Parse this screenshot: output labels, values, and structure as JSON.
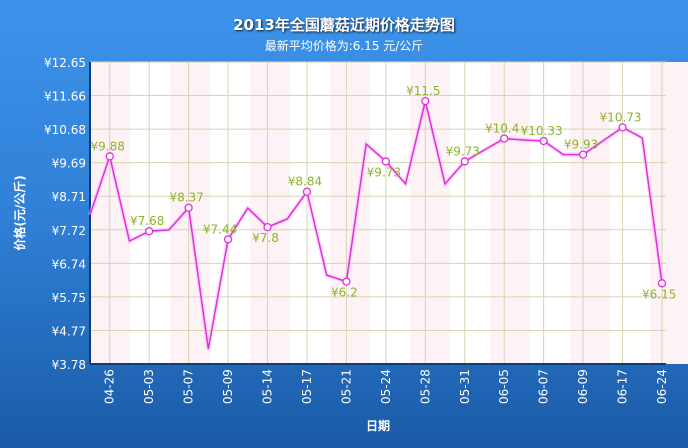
{
  "chart_data": {
    "type": "line",
    "title": "2013年全国蘑菇近期价格走势图",
    "subtitle": "最新平均价格为:6.15 元/公斤",
    "xlabel": "日期",
    "ylabel": "价格(元/公斤)",
    "yticks": [
      "¥12.65",
      "¥11.66",
      "¥10.68",
      "¥9.69",
      "¥8.71",
      "¥7.72",
      "¥6.74",
      "¥5.75",
      "¥4.77",
      "¥3.78"
    ],
    "ylim": [
      3.78,
      12.65
    ],
    "grid": true,
    "xtick_labels": [
      "04-26",
      "05-03",
      "05-07",
      "05-09",
      "05-14",
      "05-17",
      "05-21",
      "05-24",
      "05-28",
      "05-31",
      "06-05",
      "06-07",
      "06-09",
      "06-17",
      "06-24"
    ],
    "values": [
      8.16,
      9.88,
      7.39,
      7.68,
      7.72,
      8.37,
      4.22,
      7.44,
      8.36,
      7.8,
      8.04,
      8.84,
      6.39,
      6.2,
      10.24,
      9.73,
      9.07,
      11.5,
      9.07,
      9.73,
      10.07,
      10.4,
      10.36,
      10.33,
      9.93,
      9.93,
      10.33,
      10.73,
      10.42,
      6.15
    ],
    "labels": [
      "",
      "¥9.88",
      "",
      "¥7.68",
      "",
      "¥8.37",
      "",
      "¥7.44",
      "",
      "¥7.8",
      "",
      "¥8.84",
      "",
      "¥6.2",
      "",
      "¥9.73",
      "",
      "¥11.5",
      "",
      "¥9.73",
      "",
      "¥10.4",
      "",
      "¥10.33",
      "",
      "¥9.93",
      "",
      "¥10.73",
      "",
      "¥6.15"
    ],
    "line_color": "#e22ee0",
    "label_color": "#8db52a"
  }
}
